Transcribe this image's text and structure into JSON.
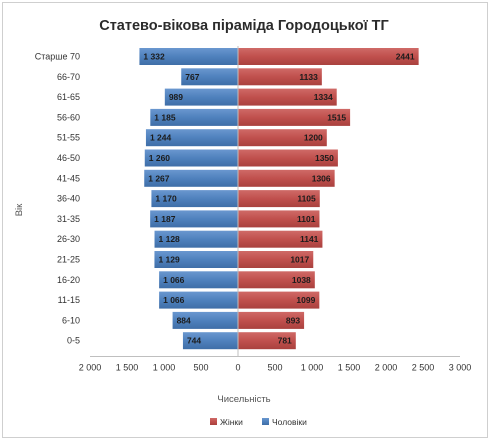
{
  "chart_data": {
    "type": "bar",
    "orientation": "horizontal-pyramid",
    "title": "Статево-вікова піраміда Городоцької ТГ",
    "xlabel": "Чисельність",
    "ylabel": "Вік",
    "categories": [
      "Старше 70",
      "66-70",
      "61-65",
      "56-60",
      "51-55",
      "46-50",
      "41-45",
      "36-40",
      "31-35",
      "26-30",
      "21-25",
      "16-20",
      "11-15",
      "6-10",
      "0-5"
    ],
    "series": [
      {
        "name": "Жінки",
        "color": "#c0504d",
        "values": [
          2441,
          1133,
          1334,
          1515,
          1200,
          1350,
          1306,
          1105,
          1101,
          1141,
          1017,
          1038,
          1099,
          893,
          781
        ],
        "labels": [
          "2441",
          "1133",
          "1334",
          "1515",
          "1200",
          "1350",
          "1306",
          "1105",
          "1101",
          "1141",
          "1017",
          "1038",
          "1099",
          "893",
          "781"
        ]
      },
      {
        "name": "Чоловіки",
        "color": "#4f81bd",
        "values": [
          1332,
          767,
          989,
          1185,
          1244,
          1260,
          1267,
          1170,
          1187,
          1128,
          1129,
          1066,
          1066,
          884,
          744
        ],
        "labels": [
          "1 332",
          "767",
          "989",
          "1 185",
          "1 244",
          "1 260",
          "1 267",
          "1 170",
          "1 187",
          "1 128",
          "1 129",
          "1 066",
          "1 066",
          "884",
          "744"
        ]
      }
    ],
    "xlim": [
      -2000,
      3000
    ],
    "xticks": [
      -2000,
      -1500,
      -1000,
      -500,
      0,
      500,
      1000,
      1500,
      2000,
      2500,
      3000
    ],
    "xtick_labels": [
      "2 000",
      "1 500",
      "1 000",
      "500",
      "0",
      "500",
      "1 000",
      "1 500",
      "2 000",
      "2 500",
      "3 000"
    ],
    "legend_position": "bottom",
    "grid": false
  }
}
